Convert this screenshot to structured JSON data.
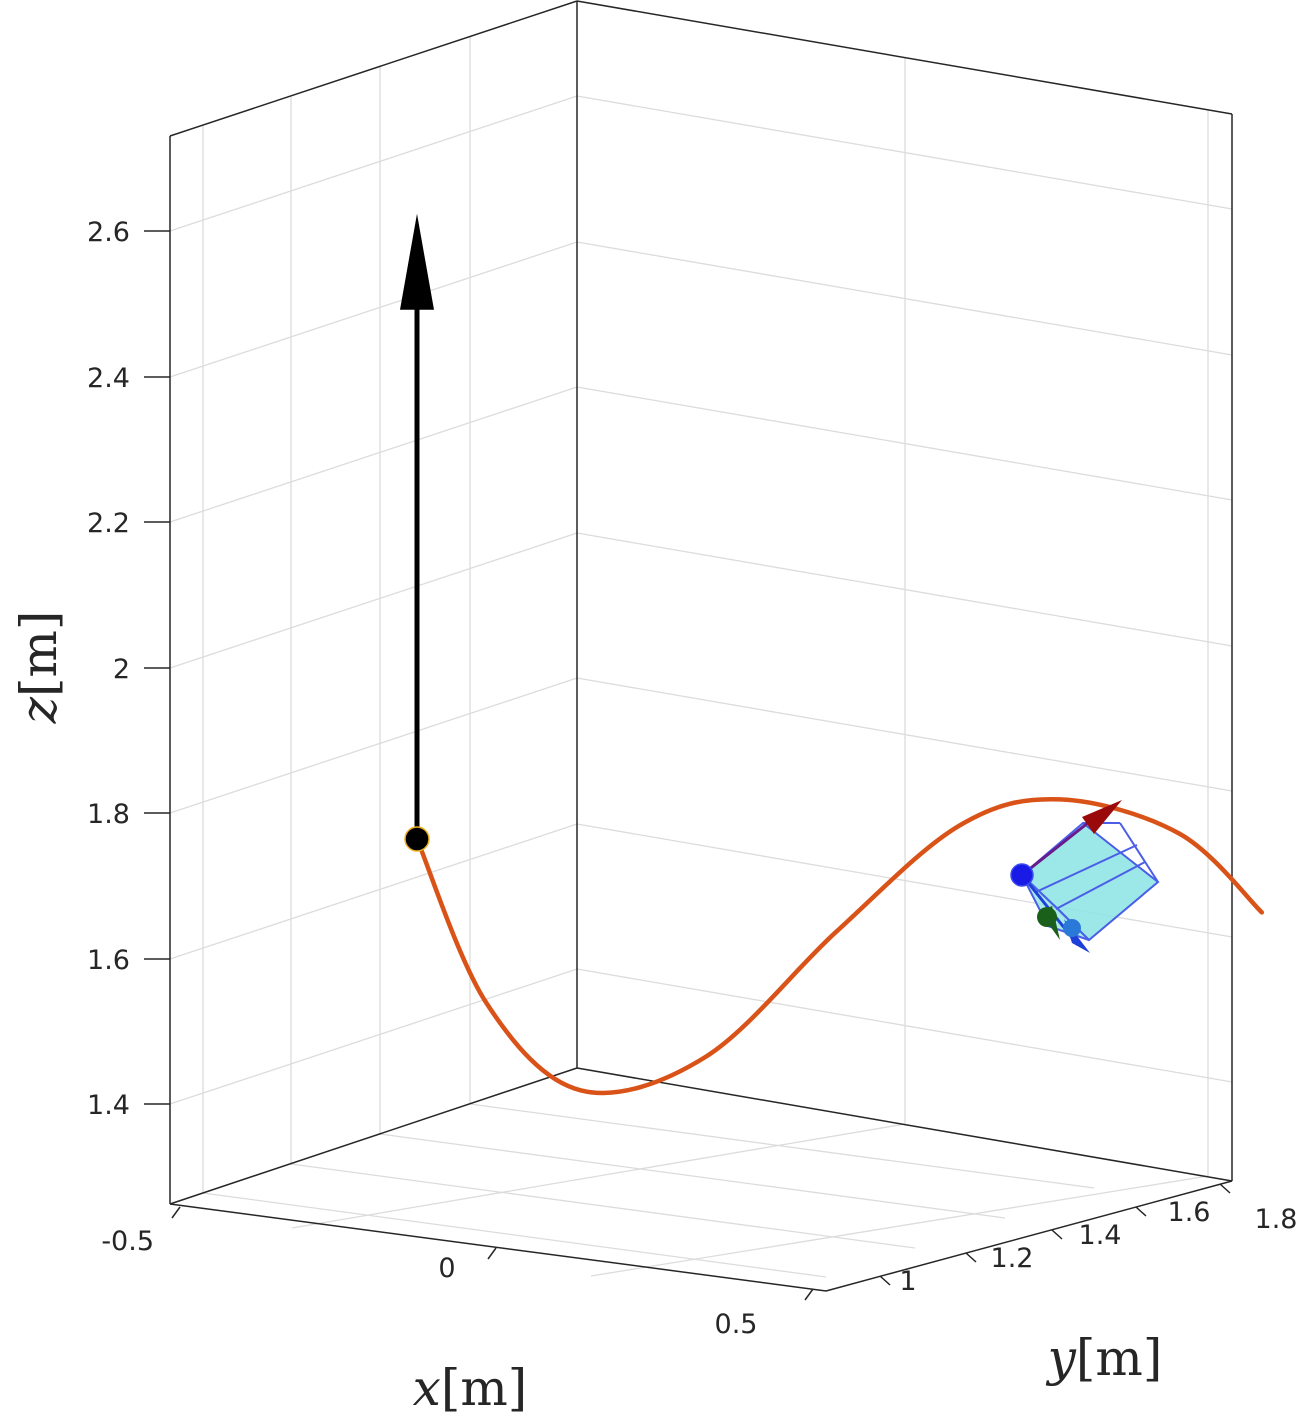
{
  "chart_data": {
    "type": "line3d",
    "title": "",
    "xlabel": {
      "var": "x",
      "unit": "[m]"
    },
    "ylabel": {
      "var": "y",
      "unit": "[m]"
    },
    "zlabel": {
      "var": "z",
      "unit": "[m]"
    },
    "xticks": [
      -0.5,
      0,
      0.5
    ],
    "yticks": [
      1,
      1.2,
      1.4,
      1.6,
      1.8
    ],
    "zticks": [
      1.4,
      1.6,
      1.8,
      2,
      2.2,
      2.4,
      2.6
    ],
    "xtick_labels": [
      "-0.5",
      "0",
      "0.5"
    ],
    "ytick_labels": [
      "1",
      "1.2",
      "1.4",
      "1.6",
      "1.8"
    ],
    "ztick_labels": [
      "1.4",
      "1.6",
      "1.8",
      "2",
      "2.2",
      "2.4",
      "2.6"
    ],
    "grid": true,
    "box": true,
    "colors": {
      "trajectory": "#D95319",
      "arrow": "#000000",
      "start_marker": "#000000",
      "start_marker_edge": "#EDB120",
      "box_fill": "#8BE3E3",
      "box_edge": "#4A5EE8",
      "frame_x_arrow": "#9B0A0A",
      "frame_y_arrow": "#1A5F1A",
      "frame_z_arrow": "#1F3FD9",
      "frame_origin": "#1A1AE6"
    },
    "series": [
      {
        "points": [
          [
            0.0,
            1.0,
            1.67
          ],
          [
            0.08,
            1.04,
            1.45
          ],
          [
            0.2,
            1.08,
            1.34
          ],
          [
            0.36,
            1.13,
            1.4
          ],
          [
            0.5,
            1.22,
            1.58
          ],
          [
            0.62,
            1.32,
            1.73
          ],
          [
            0.72,
            1.4,
            1.77
          ],
          [
            0.85,
            1.48,
            1.73
          ],
          [
            0.95,
            1.52,
            1.63
          ]
        ]
      }
    ],
    "annotations": {
      "arrow_start_z": 1.67,
      "arrow_end_z": 2.53
    }
  }
}
